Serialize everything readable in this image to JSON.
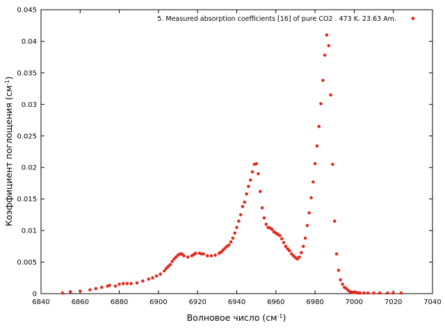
{
  "chart_data": {
    "type": "scatter",
    "title": "",
    "xlabel": "Волновое число (см",
    "xlabel_sup": "-1",
    "xlabel_tail": ")",
    "ylabel": "Коэффициент поглощения (см",
    "ylabel_sup": "-1",
    "ylabel_tail": ")",
    "xlim": [
      6840,
      7040
    ],
    "ylim": [
      0,
      0.045
    ],
    "x_ticks": [
      "6840",
      "6860",
      "6880",
      "6900",
      "6920",
      "6940",
      "6960",
      "6980",
      "7000",
      "7020",
      "7040"
    ],
    "y_ticks": [
      "0",
      "0.005",
      "0.01",
      "0.015",
      "0.02",
      "0.025",
      "0.03",
      "0.035",
      "0.04",
      "0.045"
    ],
    "grid": false,
    "legend_position": "top-right",
    "series": [
      {
        "name": "5. Measured absorption coefficients [16] of pure CO2 . 473 K. 23.63 Am.",
        "color": "#e2281c",
        "x": [
          6851,
          6855,
          6860,
          6865,
          6868,
          6871,
          6874,
          6875,
          6878,
          6880,
          6882,
          6884,
          6886,
          6889,
          6892,
          6895,
          6897,
          6899,
          6901,
          6903,
          6904,
          6905,
          6906,
          6907,
          6908,
          6909,
          6910,
          6911,
          6912,
          6913,
          6915,
          6917,
          6918,
          6919,
          6921,
          6922,
          6923,
          6925,
          6927,
          6929,
          6931,
          6932,
          6933,
          6934,
          6935,
          6936,
          6937,
          6938,
          6939,
          6940,
          6941,
          6942,
          6943,
          6944,
          6945,
          6946,
          6947,
          6948,
          6949,
          6950,
          6951,
          6952,
          6953,
          6954,
          6955,
          6956,
          6957,
          6958,
          6959,
          6960,
          6961,
          6962,
          6963,
          6964,
          6965,
          6966,
          6967,
          6968,
          6969,
          6970,
          6971,
          6972,
          6973,
          6974,
          6975,
          6976,
          6977,
          6978,
          6979,
          6980,
          6981,
          6982,
          6983,
          6984,
          6985,
          6986,
          6987,
          6988,
          6989,
          6990,
          6991,
          6992,
          6993,
          6994,
          6995,
          6996,
          6997,
          6998,
          6999,
          7000,
          7001,
          7002,
          7003,
          7005,
          7007,
          7010,
          7013,
          7017,
          7020,
          7024
        ],
        "y": [
          0.0001,
          0.0003,
          0.0004,
          0.0006,
          0.0008,
          0.001,
          0.0012,
          0.0013,
          0.0012,
          0.0015,
          0.0016,
          0.0016,
          0.0016,
          0.0017,
          0.002,
          0.0023,
          0.0025,
          0.0028,
          0.0031,
          0.0036,
          0.004,
          0.0043,
          0.0046,
          0.0051,
          0.0055,
          0.0058,
          0.0061,
          0.0063,
          0.0063,
          0.006,
          0.0058,
          0.006,
          0.0062,
          0.0064,
          0.0064,
          0.0063,
          0.0063,
          0.006,
          0.006,
          0.0061,
          0.0064,
          0.0066,
          0.0069,
          0.0072,
          0.0075,
          0.0077,
          0.0082,
          0.0088,
          0.0096,
          0.0105,
          0.0115,
          0.0125,
          0.0138,
          0.0145,
          0.0158,
          0.017,
          0.018,
          0.0193,
          0.0205,
          0.0206,
          0.019,
          0.0162,
          0.0136,
          0.012,
          0.011,
          0.0105,
          0.0104,
          0.0102,
          0.0098,
          0.0096,
          0.0094,
          0.0092,
          0.0087,
          0.0081,
          0.0075,
          0.0071,
          0.0068,
          0.0063,
          0.006,
          0.0057,
          0.0055,
          0.0058,
          0.0065,
          0.0075,
          0.0088,
          0.0108,
          0.0128,
          0.0152,
          0.0177,
          0.0206,
          0.0234,
          0.0265,
          0.0301,
          0.0338,
          0.0378,
          0.041,
          0.0393,
          0.0315,
          0.0205,
          0.0115,
          0.0063,
          0.0037,
          0.0022,
          0.0015,
          0.001,
          0.0008,
          0.0005,
          0.0003,
          0.0002,
          0.0002,
          0.0002,
          0.0001,
          0.0001,
          0.0001,
          0.0001,
          0.0001,
          0.0001,
          0.0001,
          0.0001,
          0.0001
        ]
      }
    ]
  }
}
